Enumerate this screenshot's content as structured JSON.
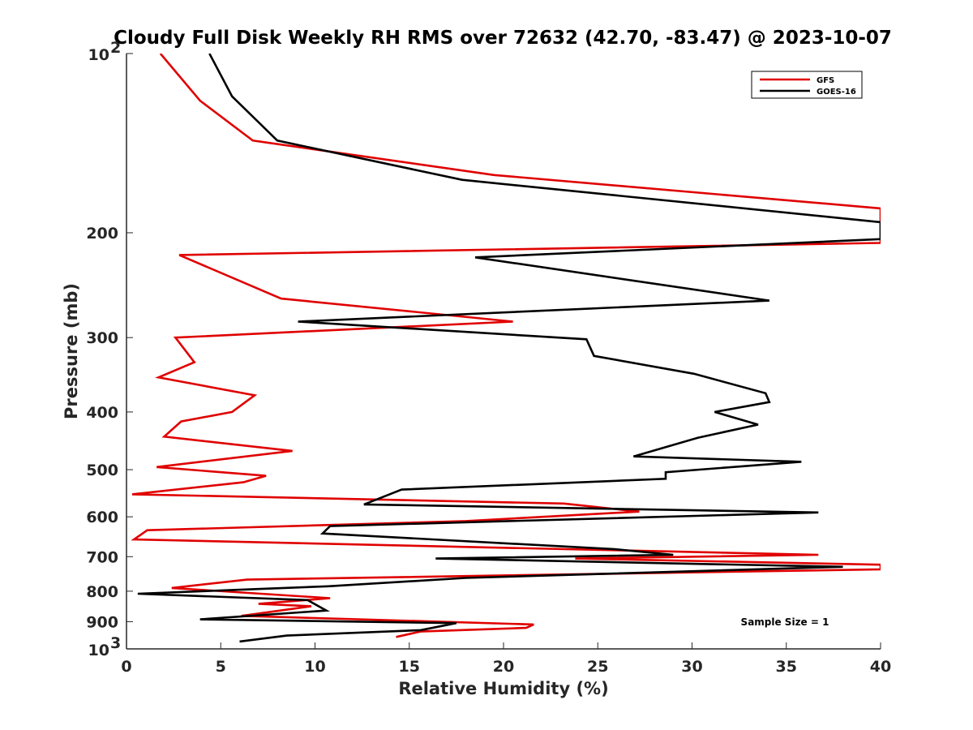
{
  "chart_data": {
    "type": "line",
    "title": "Cloudy Full Disk Weekly RH RMS over 72632 (42.70, -83.47) @ 2023-10-07",
    "xlabel": "Relative Humidity (%)",
    "ylabel": "Pressure (mb)",
    "xlim": [
      0,
      40
    ],
    "ylim": [
      100,
      1000
    ],
    "y_scale": "log",
    "y_reversed": true,
    "xticks": [
      "0",
      "5",
      "10",
      "15",
      "20",
      "25",
      "30",
      "35",
      "40"
    ],
    "yticks": [
      {
        "value": 100,
        "label": "10",
        "sup": "2"
      },
      {
        "value": 200,
        "label": "200",
        "sup": ""
      },
      {
        "value": 300,
        "label": "300",
        "sup": ""
      },
      {
        "value": 400,
        "label": "400",
        "sup": ""
      },
      {
        "value": 500,
        "label": "500",
        "sup": ""
      },
      {
        "value": 600,
        "label": "600",
        "sup": ""
      },
      {
        "value": 700,
        "label": "700",
        "sup": ""
      },
      {
        "value": 800,
        "label": "800",
        "sup": ""
      },
      {
        "value": 900,
        "label": "900",
        "sup": ""
      },
      {
        "value": 1000,
        "label": "10",
        "sup": "3"
      }
    ],
    "grid": false,
    "legend_position": "top-right",
    "annotation": "Sample Size = 1",
    "series": [
      {
        "name": "GFS",
        "color": "#e00000",
        "points": [
          [
            1.8,
            100
          ],
          [
            3.9,
            120
          ],
          [
            6.7,
            140
          ],
          [
            19.5,
            160
          ],
          [
            40,
            182
          ],
          [
            40,
            208
          ],
          [
            2.8,
            218
          ],
          [
            8.2,
            258
          ],
          [
            20.5,
            282
          ],
          [
            2.6,
            300
          ],
          [
            3.6,
            330
          ],
          [
            1.7,
            350
          ],
          [
            6.8,
            375
          ],
          [
            5.6,
            400
          ],
          [
            2.9,
            415
          ],
          [
            2.0,
            440
          ],
          [
            8.8,
            465
          ],
          [
            1.6,
            495
          ],
          [
            7.4,
            512
          ],
          [
            6.2,
            525
          ],
          [
            0.3,
            550
          ],
          [
            23.2,
            570
          ],
          [
            27.2,
            588
          ],
          [
            18.0,
            610
          ],
          [
            1.1,
            632
          ],
          [
            0.4,
            655
          ],
          [
            36.7,
            695
          ],
          [
            23.8,
            705
          ],
          [
            40,
            722
          ],
          [
            40,
            735
          ],
          [
            6.4,
            765
          ],
          [
            2.4,
            790
          ],
          [
            10.8,
            822
          ],
          [
            7.0,
            840
          ],
          [
            9.8,
            848
          ],
          [
            6.1,
            880
          ],
          [
            21.6,
            910
          ],
          [
            21.2,
            922
          ],
          [
            15.6,
            935
          ],
          [
            14.3,
            955
          ]
        ]
      },
      {
        "name": "GOES-16",
        "color": "#000000",
        "points": [
          [
            4.4,
            100
          ],
          [
            5.6,
            118
          ],
          [
            8.0,
            140
          ],
          [
            17.8,
            163
          ],
          [
            40,
            192
          ],
          [
            40,
            205
          ],
          [
            18.5,
            220
          ],
          [
            34.1,
            260
          ],
          [
            9.1,
            282
          ],
          [
            24.4,
            302
          ],
          [
            24.8,
            322
          ],
          [
            30.1,
            345
          ],
          [
            33.9,
            372
          ],
          [
            34.1,
            385
          ],
          [
            31.2,
            400
          ],
          [
            33.5,
            420
          ],
          [
            30.3,
            442
          ],
          [
            26.9,
            475
          ],
          [
            35.8,
            485
          ],
          [
            28.6,
            505
          ],
          [
            28.6,
            518
          ],
          [
            14.6,
            540
          ],
          [
            12.6,
            572
          ],
          [
            36.7,
            590
          ],
          [
            10.8,
            622
          ],
          [
            10.4,
            640
          ],
          [
            25.9,
            680
          ],
          [
            29.0,
            695
          ],
          [
            16.4,
            705
          ],
          [
            38.0,
            728
          ],
          [
            18.0,
            760
          ],
          [
            10.7,
            785
          ],
          [
            0.6,
            808
          ],
          [
            9.6,
            828
          ],
          [
            10.6,
            862
          ],
          [
            3.9,
            892
          ],
          [
            17.5,
            905
          ],
          [
            15.6,
            930
          ],
          [
            8.5,
            950
          ],
          [
            6.0,
            972
          ]
        ]
      }
    ]
  }
}
